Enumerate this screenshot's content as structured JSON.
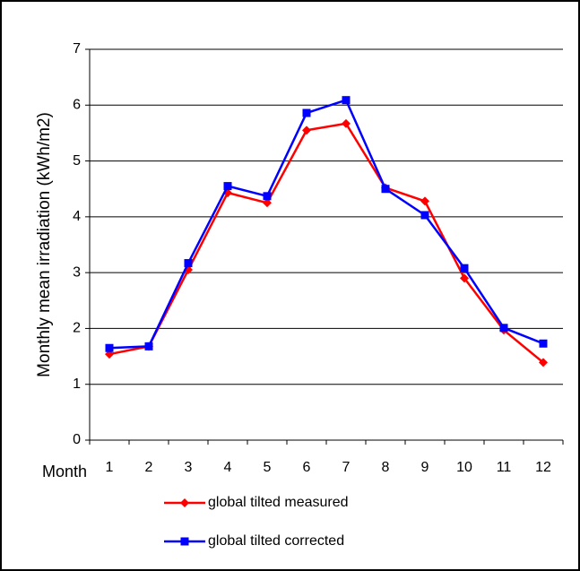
{
  "chart_data": {
    "type": "line",
    "y_label": "Monthly mean irradiation (kWh/m2)",
    "x_label": "Month",
    "categories": [
      "1",
      "2",
      "3",
      "4",
      "5",
      "6",
      "7",
      "8",
      "9",
      "10",
      "11",
      "12"
    ],
    "series": [
      {
        "name": "global tilted measured",
        "color": "#ff0000",
        "marker": "diamond",
        "values": [
          1.54,
          1.68,
          3.05,
          4.43,
          4.25,
          5.55,
          5.67,
          4.52,
          4.28,
          2.9,
          1.97,
          1.39
        ]
      },
      {
        "name": "global tilted corrected",
        "color": "#0000ff",
        "marker": "square",
        "values": [
          1.65,
          1.68,
          3.17,
          4.55,
          4.37,
          5.86,
          6.09,
          4.5,
          4.03,
          3.08,
          2.01,
          1.73
        ]
      }
    ],
    "ylim": [
      0,
      7
    ],
    "yticks": [
      0,
      1,
      2,
      3,
      4,
      5,
      6,
      7
    ],
    "grid": true
  }
}
